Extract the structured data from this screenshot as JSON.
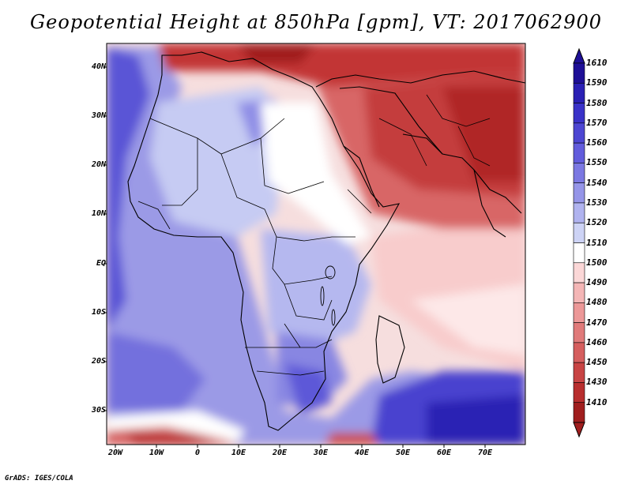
{
  "title": "Geopotential Height at 850hPa [gpm], VT: 2017062900",
  "lat_ticks": [
    "40N",
    "30N",
    "20N",
    "10N",
    "EQ",
    "10S",
    "20S",
    "30S"
  ],
  "lon_ticks": [
    "20W",
    "10W",
    "0",
    "10E",
    "20E",
    "30E",
    "40E",
    "50E",
    "60E",
    "70E"
  ],
  "lat_range": [
    "45N",
    "36S"
  ],
  "lon_range": [
    "22W",
    "80E"
  ],
  "colorbar": {
    "levels": [
      "1610",
      "1590",
      "1580",
      "1570",
      "1560",
      "1550",
      "1540",
      "1530",
      "1520",
      "1510",
      "1500",
      "1490",
      "1480",
      "1470",
      "1460",
      "1450",
      "1430",
      "1410"
    ],
    "colors": [
      "#1e0f96",
      "#2a20b4",
      "#3a32c8",
      "#4d46d2",
      "#625cdc",
      "#7b78e2",
      "#9595e8",
      "#b0b3ef",
      "#cdd3f5",
      "#ffffff",
      "#fbd7d7",
      "#f4b6b6",
      "#ec9898",
      "#e07a7a",
      "#d55e5e",
      "#c84444",
      "#b82e2e",
      "#a01e1e"
    ]
  },
  "credit": "GrADS: IGES/COLA"
}
